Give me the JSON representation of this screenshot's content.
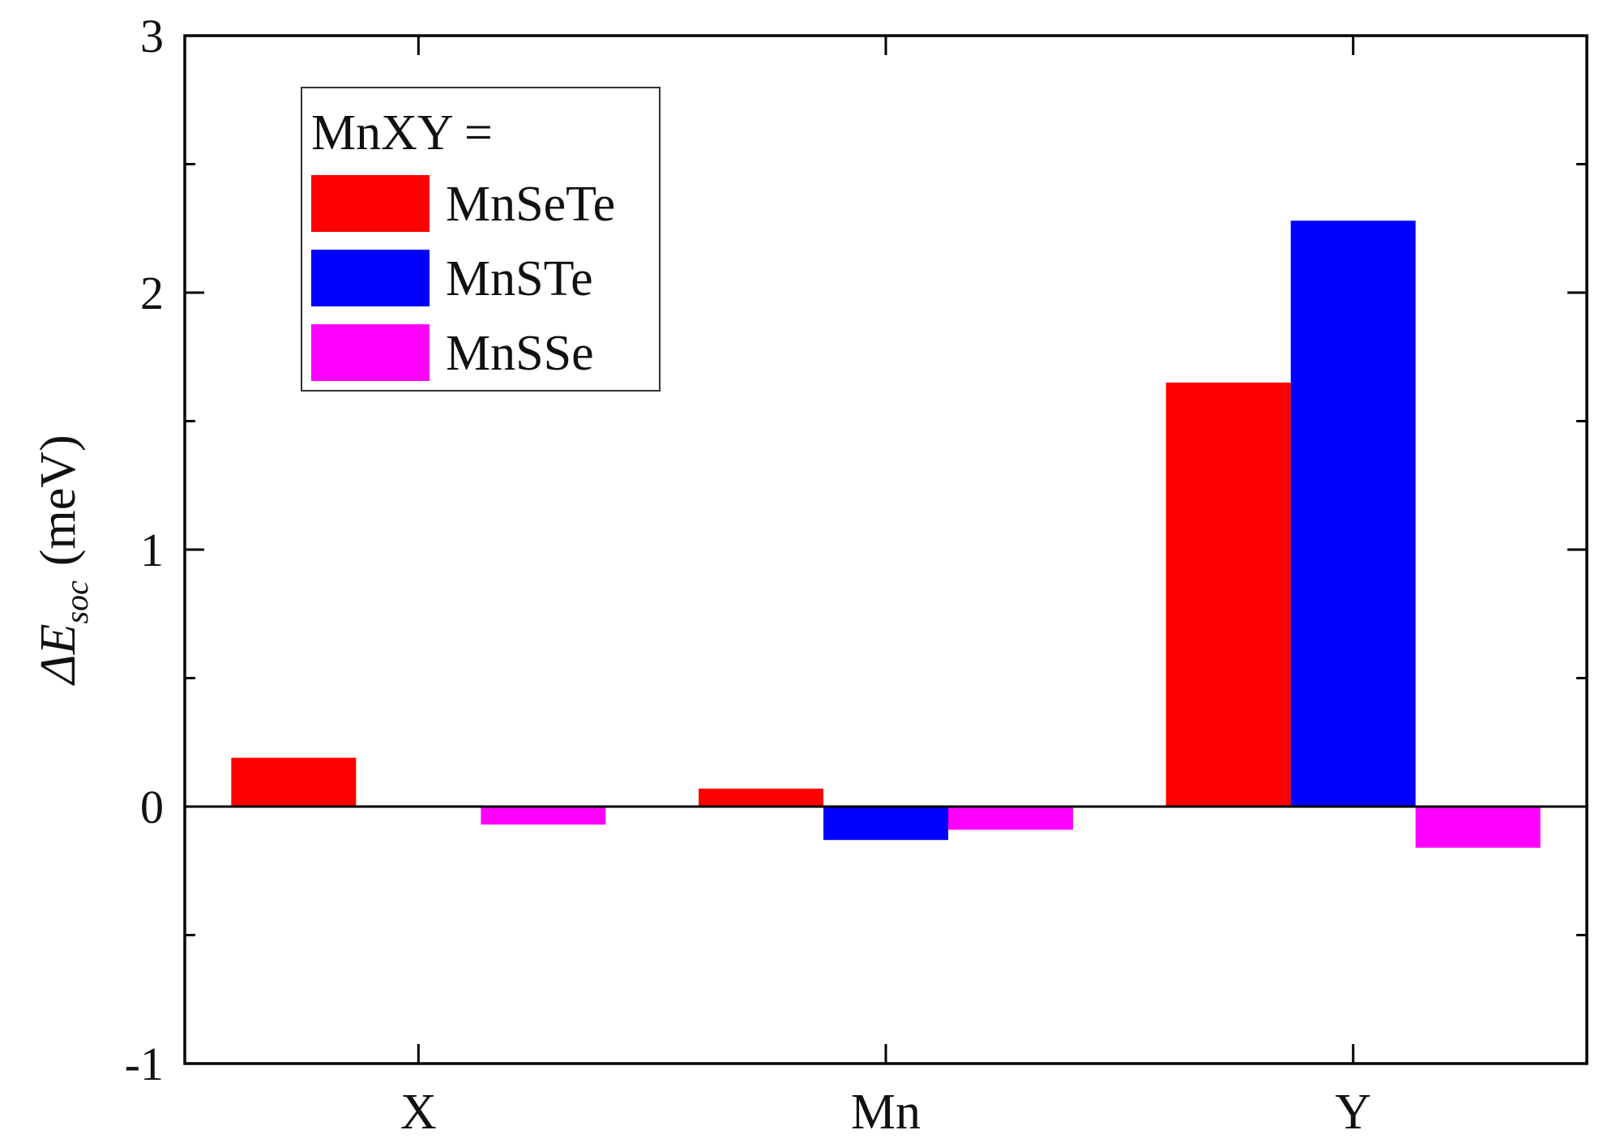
{
  "chart_data": {
    "type": "bar",
    "categories": [
      "X",
      "Mn",
      "Y"
    ],
    "series": [
      {
        "name": "MnSeTe",
        "color": "#ff0000",
        "values": [
          0.19,
          0.07,
          1.65
        ]
      },
      {
        "name": "MnSTe",
        "color": "#0000ff",
        "values": [
          0.005,
          -0.13,
          2.28
        ]
      },
      {
        "name": "MnSSe",
        "color": "#ff00ff",
        "values": [
          -0.07,
          -0.09,
          -0.16
        ]
      }
    ],
    "title": "",
    "xlabel": "",
    "ylabel": {
      "symbol": "ΔE",
      "subscript": "soc",
      "unit": "(meV)"
    },
    "ylim": [
      -1,
      3
    ],
    "yticks": [
      "-1",
      "0",
      "1",
      "2",
      "3"
    ],
    "grid": false,
    "zero_line": true,
    "legend": {
      "title": "MnXY =",
      "position": "top-left"
    }
  }
}
